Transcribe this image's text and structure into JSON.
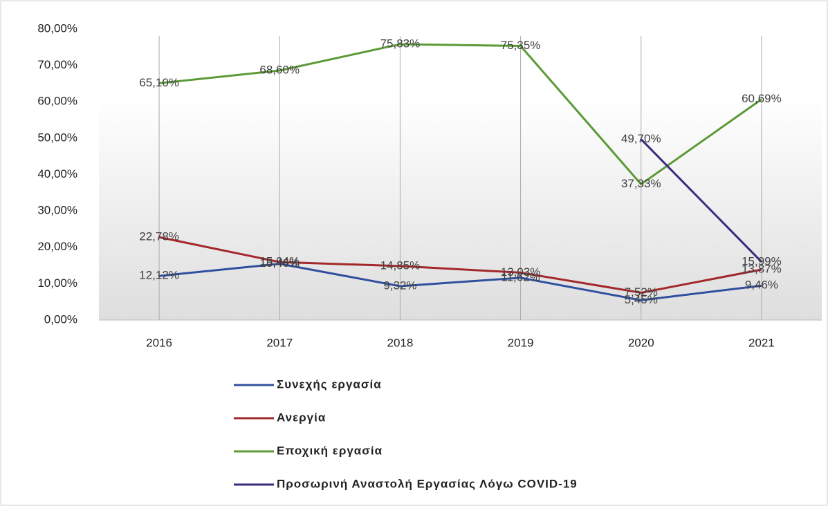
{
  "chart_data": {
    "type": "line",
    "categories": [
      "2016",
      "2017",
      "2018",
      "2019",
      "2020",
      "2021"
    ],
    "series": [
      {
        "name": "Συνεχής εργασία",
        "color": "#2f4f9e",
        "values": [
          12.12,
          15.46,
          9.32,
          11.62,
          5.45,
          9.46
        ],
        "value_labels": [
          "12,12%",
          "15,46%",
          "9,32%",
          "11,62%",
          "5,45%",
          "9,46%"
        ]
      },
      {
        "name": "Ανεργία",
        "color": "#a3282b",
        "values": [
          22.78,
          15.94,
          14.85,
          13.03,
          7.52,
          13.87
        ],
        "value_labels": [
          "22,78%",
          "15,94%",
          "14,85%",
          "13,03%",
          "7,52%",
          "13,87%"
        ]
      },
      {
        "name": "Εποχική εργασία",
        "color": "#5b9a37",
        "values": [
          65.1,
          68.6,
          75.83,
          75.35,
          37.33,
          60.69
        ],
        "value_labels": [
          "65,10%",
          "68,60%",
          "75,83%",
          "75,35%",
          "37,33%",
          "60,69%"
        ]
      },
      {
        "name": "Προσωρινή Αναστολή Εργασίας Λόγω COVID-19",
        "color": "#3b2a7c",
        "values": [
          null,
          null,
          null,
          null,
          49.7,
          15.99
        ],
        "value_labels": [
          null,
          null,
          null,
          null,
          "49,70%",
          "15,99%"
        ]
      }
    ],
    "ylim": [
      0,
      80
    ],
    "yticks": [
      {
        "value": 0,
        "label": "0,00%"
      },
      {
        "value": 10,
        "label": "10,00%"
      },
      {
        "value": 20,
        "label": "20,00%"
      },
      {
        "value": 30,
        "label": "30,00%"
      },
      {
        "value": 40,
        "label": "40,00%"
      },
      {
        "value": 50,
        "label": "50,00%"
      },
      {
        "value": 60,
        "label": "60,00%"
      },
      {
        "value": 70,
        "label": "70,00%"
      },
      {
        "value": 80,
        "label": "80,00%"
      }
    ],
    "grid": true,
    "legend": "bottom"
  }
}
